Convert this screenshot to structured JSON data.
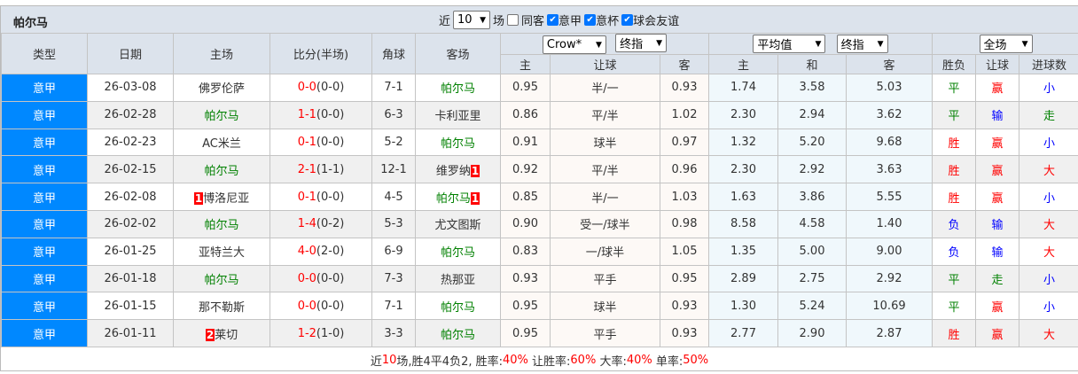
{
  "team_name": "帕尔马",
  "filters": {
    "near_label": "近",
    "count_value": "10",
    "games_label": "场",
    "same_venue": {
      "label": "同客",
      "checked": false
    },
    "serie_a": {
      "label": "意甲",
      "checked": true
    },
    "coppa": {
      "label": "意杯",
      "checked": true
    },
    "friendly": {
      "label": "球会友谊",
      "checked": true
    }
  },
  "headers": {
    "type": "类型",
    "date": "日期",
    "home": "主场",
    "score": "比分(半场)",
    "corners": "角球",
    "away": "客场",
    "company_select": "Crow*",
    "odds_select": "终指",
    "avg_select": "平均值",
    "avg_odds_select": "终指",
    "period_select": "全场",
    "ah_home": "主",
    "ah_line": "让球",
    "ah_away": "客",
    "eu_home": "主",
    "eu_draw": "和",
    "eu_away": "客",
    "res_wl": "胜负",
    "res_ah": "让球",
    "res_goals": "进球数"
  },
  "colors": {
    "parma": "#008000",
    "score": "#ff0000",
    "type_bg": "#0088ff",
    "win": "#ff0000",
    "draw": "#008000",
    "loss": "#0000ff"
  },
  "matches": [
    {
      "type": "意甲",
      "date": "26-03-08",
      "home": "佛罗伦萨",
      "home_card": "",
      "score": "0-0",
      "ht": "(0-0)",
      "corners": "7-1",
      "away": "帕尔马",
      "away_card": "",
      "ah_h": "0.95",
      "ah_line": "半/一",
      "ah_a": "0.93",
      "eu_h": "1.74",
      "eu_d": "3.58",
      "eu_a": "5.03",
      "wl": "平",
      "ah_res": "赢",
      "goals": "小"
    },
    {
      "type": "意甲",
      "date": "26-02-28",
      "home": "帕尔马",
      "home_card": "",
      "score": "1-1",
      "ht": "(0-0)",
      "corners": "6-3",
      "away": "卡利亚里",
      "away_card": "",
      "ah_h": "0.86",
      "ah_line": "平/半",
      "ah_a": "1.02",
      "eu_h": "2.30",
      "eu_d": "2.94",
      "eu_a": "3.62",
      "wl": "平",
      "ah_res": "输",
      "goals": "走"
    },
    {
      "type": "意甲",
      "date": "26-02-23",
      "home": "AC米兰",
      "home_card": "",
      "score": "0-1",
      "ht": "(0-0)",
      "corners": "5-2",
      "away": "帕尔马",
      "away_card": "",
      "ah_h": "0.91",
      "ah_line": "球半",
      "ah_a": "0.97",
      "eu_h": "1.32",
      "eu_d": "5.20",
      "eu_a": "9.68",
      "wl": "胜",
      "ah_res": "赢",
      "goals": "小"
    },
    {
      "type": "意甲",
      "date": "26-02-15",
      "home": "帕尔马",
      "home_card": "",
      "score": "2-1",
      "ht": "(1-1)",
      "corners": "12-1",
      "away": "维罗纳",
      "away_card": "1",
      "ah_h": "0.92",
      "ah_line": "平/半",
      "ah_a": "0.96",
      "eu_h": "2.30",
      "eu_d": "2.92",
      "eu_a": "3.63",
      "wl": "胜",
      "ah_res": "赢",
      "goals": "大"
    },
    {
      "type": "意甲",
      "date": "26-02-08",
      "home": "博洛尼亚",
      "home_card": "1",
      "score": "0-1",
      "ht": "(0-0)",
      "corners": "4-5",
      "away": "帕尔马",
      "away_card": "1",
      "ah_h": "0.85",
      "ah_line": "半/一",
      "ah_a": "1.03",
      "eu_h": "1.63",
      "eu_d": "3.86",
      "eu_a": "5.55",
      "wl": "胜",
      "ah_res": "赢",
      "goals": "小"
    },
    {
      "type": "意甲",
      "date": "26-02-02",
      "home": "帕尔马",
      "home_card": "",
      "score": "1-4",
      "ht": "(0-2)",
      "corners": "5-3",
      "away": "尤文图斯",
      "away_card": "",
      "ah_h": "0.90",
      "ah_line": "受一/球半",
      "ah_a": "0.98",
      "eu_h": "8.58",
      "eu_d": "4.58",
      "eu_a": "1.40",
      "wl": "负",
      "ah_res": "输",
      "goals": "大"
    },
    {
      "type": "意甲",
      "date": "26-01-25",
      "home": "亚特兰大",
      "home_card": "",
      "score": "4-0",
      "ht": "(2-0)",
      "corners": "6-9",
      "away": "帕尔马",
      "away_card": "",
      "ah_h": "0.83",
      "ah_line": "一/球半",
      "ah_a": "1.05",
      "eu_h": "1.35",
      "eu_d": "5.00",
      "eu_a": "9.00",
      "wl": "负",
      "ah_res": "输",
      "goals": "大"
    },
    {
      "type": "意甲",
      "date": "26-01-18",
      "home": "帕尔马",
      "home_card": "",
      "score": "0-0",
      "ht": "(0-0)",
      "corners": "7-3",
      "away": "热那亚",
      "away_card": "",
      "ah_h": "0.93",
      "ah_line": "平手",
      "ah_a": "0.95",
      "eu_h": "2.89",
      "eu_d": "2.75",
      "eu_a": "2.92",
      "wl": "平",
      "ah_res": "走",
      "goals": "小"
    },
    {
      "type": "意甲",
      "date": "26-01-15",
      "home": "那不勒斯",
      "home_card": "",
      "score": "0-0",
      "ht": "(0-0)",
      "corners": "7-1",
      "away": "帕尔马",
      "away_card": "",
      "ah_h": "0.95",
      "ah_line": "球半",
      "ah_a": "0.93",
      "eu_h": "1.30",
      "eu_d": "5.24",
      "eu_a": "10.69",
      "wl": "平",
      "ah_res": "赢",
      "goals": "小"
    },
    {
      "type": "意甲",
      "date": "26-01-11",
      "home": "莱切",
      "home_card": "2",
      "score": "1-2",
      "ht": "(1-0)",
      "corners": "3-3",
      "away": "帕尔马",
      "away_card": "",
      "ah_h": "0.95",
      "ah_line": "平手",
      "ah_a": "0.93",
      "eu_h": "2.77",
      "eu_d": "2.90",
      "eu_a": "2.87",
      "wl": "胜",
      "ah_res": "赢",
      "goals": "大"
    }
  ],
  "summary": {
    "prefix": "近",
    "count": "10",
    "record": "场,胜4平4负2, 胜率:",
    "win_rate": "40%",
    "ah_label": " 让胜率:",
    "ah_rate": "60%",
    "over_label": " 大率:",
    "over_rate": "40%",
    "odd_label": " 单率:",
    "odd_rate": "50%"
  }
}
